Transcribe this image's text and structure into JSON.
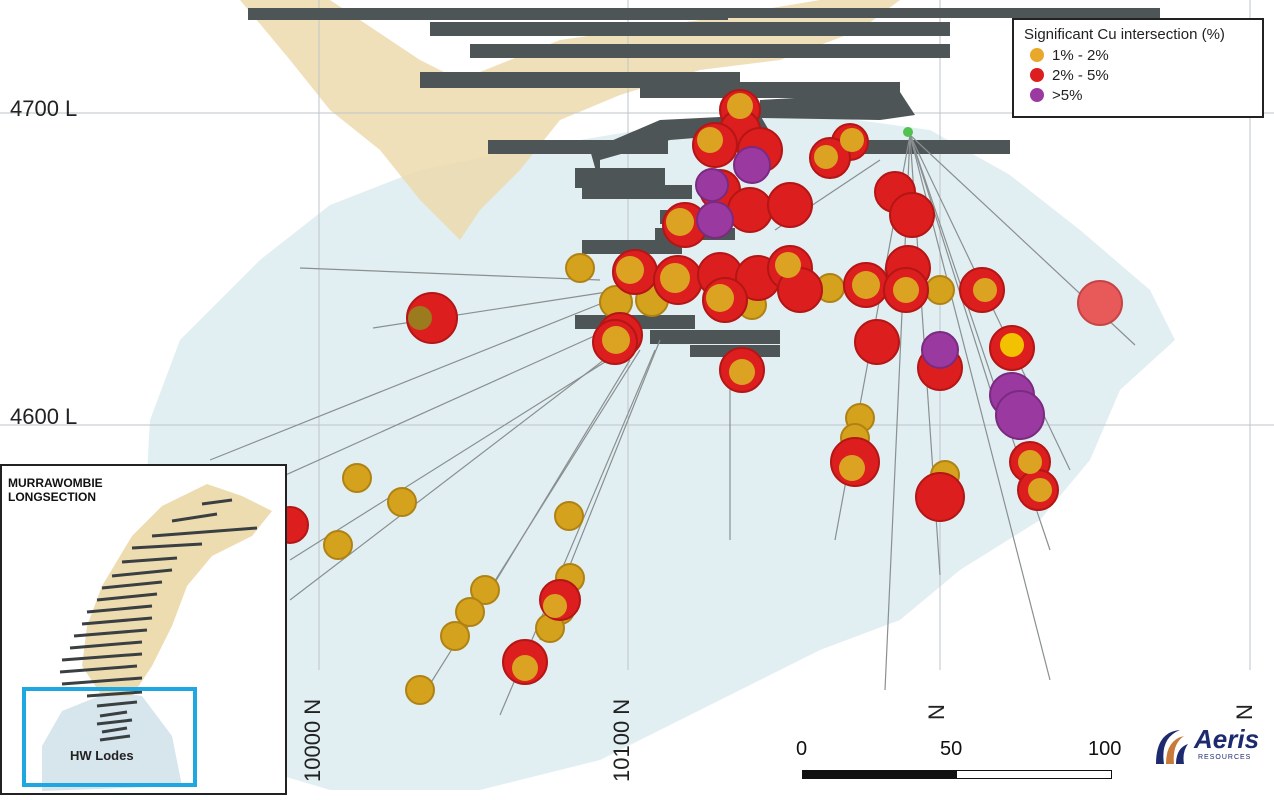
{
  "levels": {
    "upper": "4700 L",
    "lower": "4600 L"
  },
  "northings": {
    "a": "10000 N",
    "b": "10100 N",
    "c": "N",
    "d": "N"
  },
  "legend": {
    "title": "Significant Cu intersection (%)",
    "items": [
      {
        "label": "1% - 2%",
        "color": "#e8a92a"
      },
      {
        "label": "2% - 5%",
        "color": "#dd1e1e"
      },
      {
        "label": ">5%",
        "color": "#9a3aa0"
      }
    ]
  },
  "inset": {
    "title_line1": "MURRAWOMBIE",
    "title_line2": "LONGSECTION",
    "hw_label": "HW Lodes",
    "box_color": "#1ea7e0"
  },
  "scale": {
    "t0": "0",
    "t50": "50",
    "t100": "100"
  },
  "logo": {
    "word": "Aeris",
    "sub": "RESOURCES"
  }
}
